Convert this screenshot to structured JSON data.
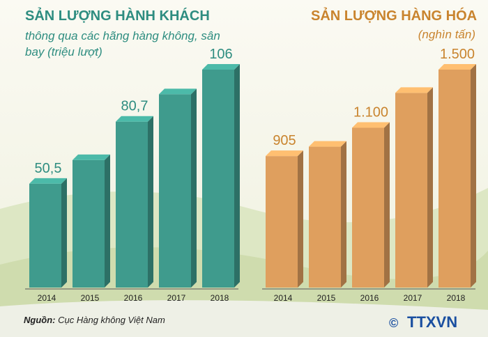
{
  "chart_data": [
    {
      "type": "bar",
      "title": "SẢN LƯỢNG HÀNH KHÁCH",
      "subtitle": "thông qua các hãng hàng không, sân bay (triệu lượt)",
      "categories": [
        "2014",
        "2015",
        "2016",
        "2017",
        "2018"
      ],
      "values": [
        50.5,
        62,
        80.7,
        94,
        106
      ],
      "value_labels": [
        "50,5",
        null,
        "80,7",
        null,
        "106"
      ],
      "color": "#3f9b8d"
    },
    {
      "type": "bar",
      "title": "SẢN LƯỢNG HÀNG HÓA",
      "subtitle": "(nghìn tấn)",
      "categories": [
        "2014",
        "2015",
        "2016",
        "2017",
        "2018"
      ],
      "values": [
        905,
        970,
        1100,
        1340,
        1500
      ],
      "value_labels": [
        "905",
        null,
        "1.100",
        null,
        "1.500"
      ],
      "color": "#df9f5e"
    }
  ],
  "source_label": "Nguồn:",
  "source": "Cục Hàng không Việt Nam",
  "copyright": "©",
  "credit": "TTXVN"
}
